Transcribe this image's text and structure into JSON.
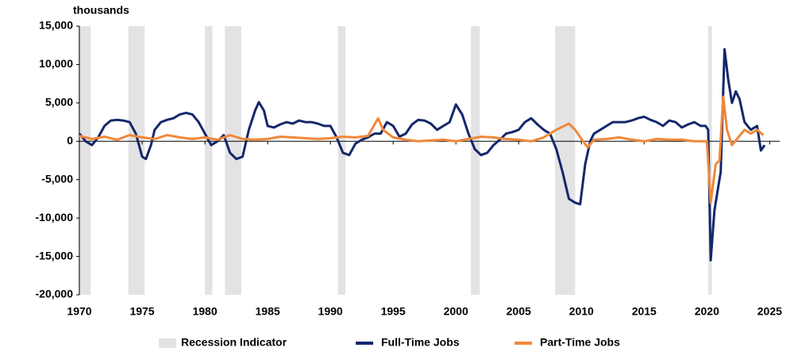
{
  "chart_data": {
    "type": "line",
    "y_unit_label": "thousands",
    "xlim": [
      1970,
      2025.8
    ],
    "xticks": [
      1970,
      1975,
      1980,
      1985,
      1990,
      1995,
      2000,
      2005,
      2010,
      2015,
      2020,
      2025
    ],
    "ylim": [
      -20000,
      15000
    ],
    "yticks": [
      {
        "value": -20000,
        "label": "-20,000"
      },
      {
        "value": -15000,
        "label": "-15,000"
      },
      {
        "value": -10000,
        "label": "-10,000"
      },
      {
        "value": -5000,
        "label": "-5,000"
      },
      {
        "value": 0,
        "label": "0"
      },
      {
        "value": 5000,
        "label": "5,000"
      },
      {
        "value": 10000,
        "label": "10,000"
      },
      {
        "value": 15000,
        "label": "15,000"
      }
    ],
    "recession": {
      "name": "Recession Indicator",
      "color": "#e3e3e3",
      "periods": [
        [
          1969.9,
          1970.9
        ],
        [
          1973.9,
          1975.2
        ],
        [
          1980.0,
          1980.6
        ],
        [
          1981.6,
          1982.9
        ],
        [
          1990.6,
          1991.2
        ],
        [
          2001.2,
          2001.9
        ],
        [
          2007.9,
          2009.5
        ],
        [
          2020.1,
          2020.4
        ]
      ]
    },
    "series": [
      {
        "name": "Full-Time Jobs",
        "color": "#14276b",
        "x": [
          1970,
          1970.5,
          1971,
          1971.5,
          1972,
          1972.5,
          1973,
          1973.5,
          1974,
          1974.5,
          1975,
          1975.3,
          1975.7,
          1976,
          1976.5,
          1977,
          1977.5,
          1978,
          1978.5,
          1979,
          1979.5,
          1980,
          1980.5,
          1981,
          1981.5,
          1982,
          1982.5,
          1983,
          1983.5,
          1984,
          1984.3,
          1984.7,
          1985,
          1985.5,
          1986,
          1986.5,
          1987,
          1987.5,
          1988,
          1988.5,
          1989,
          1989.5,
          1990,
          1990.5,
          1991,
          1991.5,
          1992,
          1992.5,
          1993,
          1993.5,
          1994,
          1994.5,
          1995,
          1995.5,
          1996,
          1996.5,
          1997,
          1997.5,
          1998,
          1998.5,
          1999,
          1999.5,
          2000,
          2000.5,
          2001,
          2001.5,
          2002,
          2002.5,
          2003,
          2003.5,
          2004,
          2004.5,
          2005,
          2005.5,
          2006,
          2006.5,
          2007,
          2007.5,
          2008,
          2008.5,
          2009,
          2009.5,
          2009.9,
          2010.3,
          2010.7,
          2011,
          2011.5,
          2012,
          2012.5,
          2013,
          2013.5,
          2014,
          2014.5,
          2015,
          2015.5,
          2016,
          2016.5,
          2017,
          2017.5,
          2018,
          2018.5,
          2019,
          2019.5,
          2019.9,
          2020.1,
          2020.3,
          2020.6,
          2020.9,
          2021.1,
          2021.4,
          2021.7,
          2022,
          2022.3,
          2022.6,
          2023,
          2023.5,
          2024,
          2024.3,
          2024.6
        ],
        "values": [
          1000,
          0,
          -500,
          500,
          2000,
          2700,
          2800,
          2700,
          2500,
          1000,
          -2000,
          -2300,
          -500,
          1500,
          2500,
          2800,
          3000,
          3500,
          3700,
          3500,
          2500,
          1000,
          -500,
          0,
          800,
          -1500,
          -2300,
          -2000,
          1500,
          4000,
          5100,
          4000,
          2000,
          1800,
          2200,
          2500,
          2300,
          2700,
          2500,
          2500,
          2300,
          2000,
          2000,
          500,
          -1500,
          -1800,
          -300,
          200,
          500,
          1000,
          1000,
          2500,
          2000,
          600,
          1000,
          2200,
          2800,
          2700,
          2300,
          1500,
          2000,
          2500,
          4800,
          3500,
          1000,
          -1000,
          -1800,
          -1500,
          -500,
          200,
          1000,
          1200,
          1500,
          2500,
          3000,
          2200,
          1500,
          1000,
          -1000,
          -4000,
          -7500,
          -8000,
          -8200,
          -3000,
          0,
          1000,
          1500,
          2000,
          2500,
          2500,
          2500,
          2700,
          3000,
          3200,
          2800,
          2500,
          2000,
          2700,
          2500,
          1800,
          2200,
          2500,
          2000,
          2000,
          1500,
          -15500,
          -9000,
          -6000,
          -4000,
          12000,
          8000,
          5000,
          6500,
          5500,
          2500,
          1500,
          2000,
          -1200,
          -500
        ]
      },
      {
        "name": "Part-Time Jobs",
        "color": "#f0883a",
        "x": [
          1970,
          1971,
          1972,
          1973,
          1974,
          1975,
          1976,
          1977,
          1978,
          1979,
          1980,
          1981,
          1982,
          1983,
          1984,
          1985,
          1986,
          1987,
          1988,
          1989,
          1990,
          1991,
          1992,
          1993,
          1993.8,
          1994.2,
          1995,
          1996,
          1997,
          1998,
          1999,
          2000,
          2001,
          2002,
          2003,
          2004,
          2005,
          2006,
          2007,
          2008,
          2009,
          2009.5,
          2010,
          2010.5,
          2011,
          2012,
          2013,
          2014,
          2015,
          2016,
          2017,
          2018,
          2019,
          2020.0,
          2020.3,
          2020.7,
          2021.0,
          2021.3,
          2021.6,
          2022,
          2022.5,
          2023,
          2023.5,
          2024,
          2024.5
        ],
        "values": [
          700,
          300,
          600,
          200,
          800,
          500,
          300,
          800,
          500,
          300,
          500,
          200,
          800,
          300,
          200,
          300,
          600,
          500,
          400,
          300,
          400,
          600,
          500,
          700,
          3000,
          1500,
          500,
          200,
          0,
          100,
          200,
          0,
          300,
          600,
          500,
          300,
          200,
          0,
          500,
          1500,
          2300,
          1500,
          300,
          -800,
          200,
          300,
          500,
          200,
          0,
          300,
          200,
          200,
          0,
          0,
          -8000,
          -3000,
          -2500,
          5800,
          1500,
          -500,
          500,
          1500,
          1000,
          1500,
          800
        ]
      }
    ]
  }
}
